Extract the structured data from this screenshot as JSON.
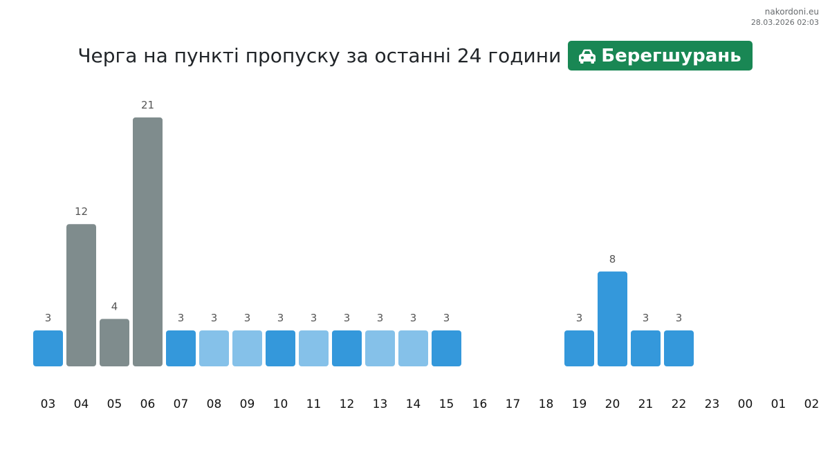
{
  "site": {
    "name": "nakordoni.eu",
    "timestamp": "28.03.2026 02:03"
  },
  "header": {
    "title": "Черга на пункті пропуску за останні 24 години",
    "checkpoint": "Берегшурань",
    "checkpoint_icon": "car-icon",
    "badge_color": "#198754"
  },
  "chart_data": {
    "type": "bar",
    "categories": [
      "03",
      "04",
      "05",
      "06",
      "07",
      "08",
      "09",
      "10",
      "11",
      "12",
      "13",
      "14",
      "15",
      "16",
      "17",
      "18",
      "19",
      "20",
      "21",
      "22",
      "23",
      "00",
      "01",
      "02"
    ],
    "values": [
      3,
      12,
      4,
      21,
      3,
      3,
      3,
      3,
      3,
      3,
      3,
      3,
      3,
      null,
      null,
      null,
      3,
      8,
      3,
      3,
      null,
      null,
      null,
      null
    ],
    "bar_colors": [
      "#3498db",
      "#7f8c8d",
      "#7f8c8d",
      "#7f8c8d",
      "#3498db",
      "#85c1e9",
      "#85c1e9",
      "#3498db",
      "#85c1e9",
      "#3498db",
      "#85c1e9",
      "#85c1e9",
      "#3498db",
      null,
      null,
      null,
      "#3498db",
      "#3498db",
      "#3498db",
      "#3498db",
      null,
      null,
      null,
      null
    ],
    "data_labels": true,
    "grid": false,
    "legend": "none"
  }
}
